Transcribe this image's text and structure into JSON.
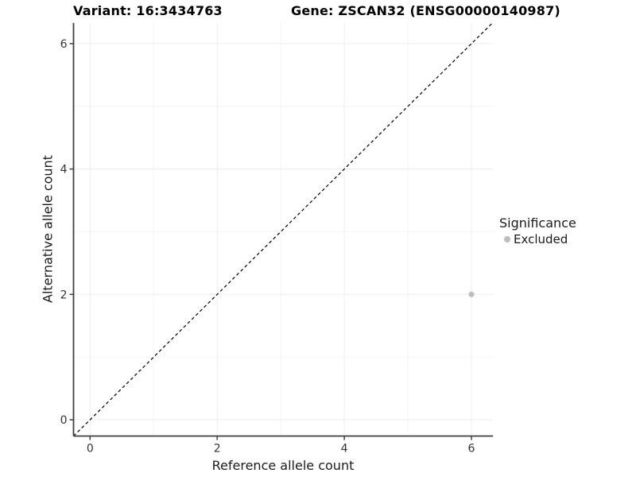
{
  "chart_data": {
    "type": "scatter",
    "title_left": "Variant: 16:3434763",
    "title_right": "Gene: ZSCAN32 (ENSG00000140987)",
    "xlabel": "Reference allele count",
    "ylabel": "Alternative allele count",
    "xlim": [
      -0.26,
      6.34
    ],
    "ylim": [
      -0.26,
      6.33
    ],
    "x_ticks": [
      0,
      2,
      4,
      6
    ],
    "y_ticks": [
      0,
      2,
      4,
      6
    ],
    "x_minor_ticks": [
      1,
      3,
      5
    ],
    "y_minor_ticks": [
      1,
      3,
      5
    ],
    "grid": "major and minor gridlines on white panel",
    "identity_line": {
      "type": "y=x",
      "style": "dashed",
      "color": "#000000"
    },
    "series": [
      {
        "name": "Excluded",
        "color": "#bdbdbd",
        "points": [
          {
            "x": 6,
            "y": 2
          }
        ]
      }
    ],
    "legend": {
      "title": "Significance",
      "position": "right",
      "items": [
        {
          "label": "Excluded",
          "color": "#bdbdbd",
          "marker": "circle"
        }
      ]
    },
    "colors": {
      "grid_major": "#ececec",
      "grid_minor": "#f4f4f4",
      "axis_line": "#404040",
      "tick_label": "#333333",
      "title": "#000000",
      "background": "#ffffff"
    }
  }
}
